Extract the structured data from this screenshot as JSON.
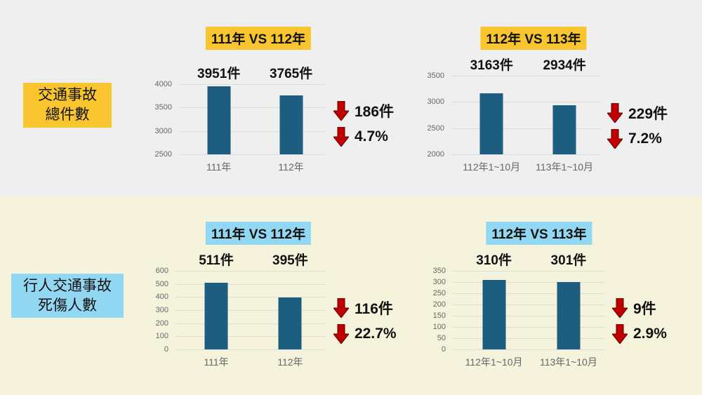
{
  "row_labels": [
    {
      "line1": "交通事故",
      "line2": "總件數"
    },
    {
      "line1": "行人交通事故",
      "line2": "死傷人數"
    }
  ],
  "colors": {
    "bar": "#1c5d80",
    "arrow": "#c00000"
  },
  "chart_data": [
    {
      "type": "bar",
      "title": "111年 VS 112年",
      "categories": [
        "111年",
        "112年"
      ],
      "values": [
        3951,
        3765
      ],
      "data_labels": [
        "3951件",
        "3765件"
      ],
      "ylim": [
        2500,
        4000
      ],
      "yticks": [
        2500,
        3000,
        3500,
        4000
      ],
      "change": {
        "count": "186件",
        "percent": "4.7%",
        "direction": "down"
      }
    },
    {
      "type": "bar",
      "title": "112年 VS 113年",
      "categories": [
        "112年1~10月",
        "113年1~10月"
      ],
      "values": [
        3163,
        2934
      ],
      "data_labels": [
        "3163件",
        "2934件"
      ],
      "ylim": [
        2000,
        3500
      ],
      "yticks": [
        2000,
        2500,
        3000,
        3500
      ],
      "change": {
        "count": "229件",
        "percent": "7.2%",
        "direction": "down"
      }
    },
    {
      "type": "bar",
      "title": "111年 VS 112年",
      "categories": [
        "111年",
        "112年"
      ],
      "values": [
        511,
        395
      ],
      "data_labels": [
        "511件",
        "395件"
      ],
      "ylim": [
        0,
        600
      ],
      "yticks": [
        0,
        100,
        200,
        300,
        400,
        500,
        600
      ],
      "change": {
        "count": "116件",
        "percent": "22.7%",
        "direction": "down"
      }
    },
    {
      "type": "bar",
      "title": "112年 VS 113年",
      "categories": [
        "112年1~10月",
        "113年1~10月"
      ],
      "values": [
        310,
        301
      ],
      "data_labels": [
        "310件",
        "301件"
      ],
      "ylim": [
        0,
        350
      ],
      "yticks": [
        0,
        50,
        100,
        150,
        200,
        250,
        300,
        350
      ],
      "change": {
        "count": "9件",
        "percent": "2.9%",
        "direction": "down"
      }
    }
  ]
}
